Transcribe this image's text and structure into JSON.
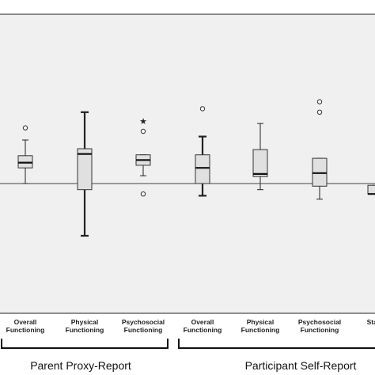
{
  "chart_data": {
    "type": "boxplot",
    "title": "",
    "xlabel": "",
    "ylabel": "",
    "grid": false,
    "reference_line": 0,
    "ylim": [
      -3.6,
      3.1
    ],
    "background": "#f0f0f0",
    "box_fill": "#e0e0e0",
    "groups": [
      {
        "label": "Parent Proxy-Report",
        "categories": [
          0,
          1,
          2
        ]
      },
      {
        "label": "Participant Self-Report",
        "categories": [
          3,
          4,
          5,
          6
        ]
      }
    ],
    "categories": [
      {
        "line1": "Overall",
        "line2": "Functioning",
        "min": 0.0,
        "q1": 0.9,
        "median": 1.2,
        "q3": 1.6,
        "max": 2.5,
        "outliers": [
          {
            "value": 3.2,
            "marker": "circle"
          }
        ]
      },
      {
        "line1": "Physical",
        "line2": "Functioning",
        "min": -3.0,
        "q1": -0.35,
        "median": 1.7,
        "q3": 2.0,
        "max": 4.1,
        "outliers": []
      },
      {
        "line1": "Psychosocial",
        "line2": "Functioning",
        "min": 0.45,
        "q1": 1.05,
        "median": 1.35,
        "q3": 1.65,
        "max": 1.65,
        "outliers": [
          {
            "value": 3.6,
            "marker": "star"
          },
          {
            "value": 3.0,
            "marker": "circle"
          },
          {
            "value": -0.6,
            "marker": "circle"
          }
        ]
      },
      {
        "line1": "Overall",
        "line2": "Functioning",
        "min": -0.7,
        "q1": 0.0,
        "median": 0.9,
        "q3": 1.65,
        "max": 2.7,
        "outliers": [
          {
            "value": 4.3,
            "marker": "circle"
          }
        ]
      },
      {
        "line1": "Physical",
        "line2": "Functioning",
        "min": -0.35,
        "q1": 0.4,
        "median": 0.55,
        "q3": 1.95,
        "max": 3.45,
        "outliers": []
      },
      {
        "line1": "Psychosocial",
        "line2": "Functioning",
        "min": -0.9,
        "q1": -0.15,
        "median": 0.6,
        "q3": 1.45,
        "max": 1.45,
        "outliers": [
          {
            "value": 4.7,
            "marker": "circle"
          },
          {
            "value": 4.1,
            "marker": "circle"
          }
        ]
      },
      {
        "line1": "State",
        "line2": "",
        "min": -0.6,
        "q1": -0.6,
        "median": -0.6,
        "q3": -0.1,
        "max": -0.1,
        "outliers": []
      }
    ]
  }
}
